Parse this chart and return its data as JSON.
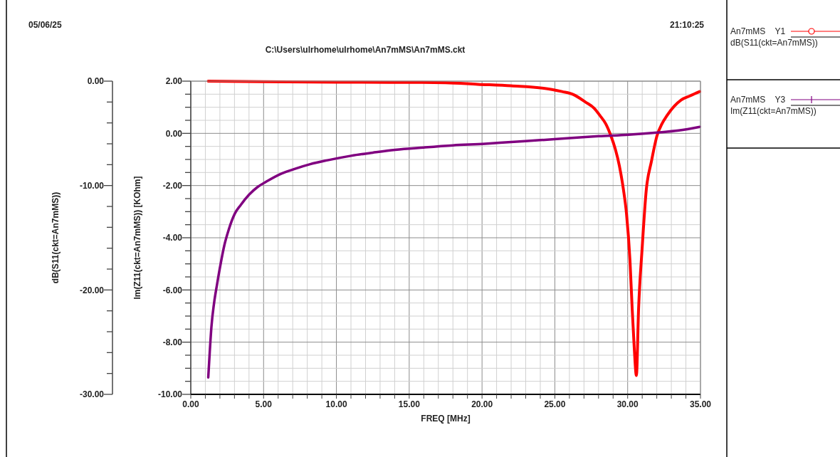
{
  "chart_data": {
    "type": "line",
    "subtitle": "C:\\Users\\ulrhome\\ulrhome\\An7mMS\\An7mMS.ckt",
    "annotations": [
      "05/06/25",
      "21:10:25"
    ],
    "xlabel": "FREQ [MHz]",
    "ylabel": "Im(Z11(ckt=An7mMS)) [KOhm]",
    "y2label": "dB(S11(ckt=An7mMS))",
    "xlim": [
      0,
      35
    ],
    "xticks": [
      {
        "value": 0,
        "label": "0.00"
      },
      {
        "value": 1,
        "label": null
      },
      {
        "value": 2,
        "label": null
      },
      {
        "value": 3,
        "label": null
      },
      {
        "value": 4,
        "label": null
      },
      {
        "value": 5,
        "label": "5.00"
      },
      {
        "value": 6,
        "label": null
      },
      {
        "value": 7,
        "label": null
      },
      {
        "value": 8,
        "label": null
      },
      {
        "value": 9,
        "label": null
      },
      {
        "value": 10,
        "label": "10.00"
      },
      {
        "value": 11,
        "label": null
      },
      {
        "value": 12,
        "label": null
      },
      {
        "value": 13,
        "label": null
      },
      {
        "value": 14,
        "label": null
      },
      {
        "value": 15,
        "label": "15.00"
      },
      {
        "value": 16,
        "label": null
      },
      {
        "value": 17,
        "label": null
      },
      {
        "value": 18,
        "label": null
      },
      {
        "value": 19,
        "label": null
      },
      {
        "value": 20,
        "label": "20.00"
      },
      {
        "value": 21,
        "label": null
      },
      {
        "value": 22,
        "label": null
      },
      {
        "value": 23,
        "label": null
      },
      {
        "value": 24,
        "label": null
      },
      {
        "value": 25,
        "label": "25.00"
      },
      {
        "value": 26,
        "label": null
      },
      {
        "value": 27,
        "label": null
      },
      {
        "value": 28,
        "label": null
      },
      {
        "value": 29,
        "label": null
      },
      {
        "value": 30,
        "label": "30.00"
      },
      {
        "value": 31,
        "label": null
      },
      {
        "value": 32,
        "label": null
      },
      {
        "value": 33,
        "label": null
      },
      {
        "value": 34,
        "label": null
      },
      {
        "value": 35,
        "label": "35.00"
      }
    ],
    "ylim": [
      -10,
      2
    ],
    "yticks": [
      {
        "value": -10,
        "label": "-10.00"
      },
      {
        "value": -9.5,
        "label": null
      },
      {
        "value": -9,
        "label": null
      },
      {
        "value": -8.5,
        "label": null
      },
      {
        "value": -8,
        "label": "-8.00"
      },
      {
        "value": -7.5,
        "label": null
      },
      {
        "value": -7,
        "label": null
      },
      {
        "value": -6.5,
        "label": null
      },
      {
        "value": -6,
        "label": "-6.00"
      },
      {
        "value": -5.5,
        "label": null
      },
      {
        "value": -5,
        "label": null
      },
      {
        "value": -4.5,
        "label": null
      },
      {
        "value": -4,
        "label": "-4.00"
      },
      {
        "value": -3.5,
        "label": null
      },
      {
        "value": -3,
        "label": null
      },
      {
        "value": -2.5,
        "label": null
      },
      {
        "value": -2,
        "label": "-2.00"
      },
      {
        "value": -1.5,
        "label": null
      },
      {
        "value": -1,
        "label": null
      },
      {
        "value": -0.5,
        "label": null
      },
      {
        "value": 0,
        "label": "0.00"
      },
      {
        "value": 0.5,
        "label": null
      },
      {
        "value": 1,
        "label": null
      },
      {
        "value": 1.5,
        "label": null
      },
      {
        "value": 2,
        "label": "2.00"
      }
    ],
    "y2lim": [
      -30,
      0
    ],
    "y2ticks": [
      {
        "value": -30,
        "label": "-30.00"
      },
      {
        "value": -20,
        "label": "-20.00"
      },
      {
        "value": -10,
        "label": "-10.00"
      },
      {
        "value": 0,
        "label": "0.00"
      }
    ],
    "grid": true,
    "legend": "right",
    "series": [
      {
        "name": "An7mMS    Y1\ndB(S11(ckt=An7mMS))",
        "color": "#ff0000",
        "axis": "y2",
        "x": [
          1.2,
          5,
          10,
          15,
          17.5,
          19.7,
          22,
          24.8,
          25.5,
          26.3,
          27.1,
          27.7,
          28.1,
          28.5,
          28.84,
          29.15,
          29.43,
          29.7,
          29.92,
          30.16,
          30.31,
          30.45,
          30.6,
          30.75,
          30.99,
          31.28,
          31.63,
          32.02,
          32.35,
          32.7,
          33.2,
          33.68,
          34.3,
          34.95
        ],
        "values": [
          0,
          -0.05,
          -0.1,
          -0.12,
          -0.15,
          -0.3,
          -0.45,
          -0.8,
          -1.0,
          -1.3,
          -2.0,
          -2.6,
          -3.3,
          -4.1,
          -5.2,
          -6.5,
          -8.1,
          -10.3,
          -12.7,
          -17.2,
          -21.8,
          -25.5,
          -28.2,
          -21.8,
          -16.1,
          -10.4,
          -7.7,
          -5.2,
          -4.1,
          -3.3,
          -2.4,
          -1.8,
          -1.4,
          -1.0
        ]
      },
      {
        "name": "An7mMS    Y3\nIm(Z11(ckt=An7mMS))",
        "color": "#800080",
        "axis": "y",
        "x": [
          1.2,
          1.3,
          1.42,
          1.6,
          1.8,
          2.05,
          2.3,
          2.6,
          3.03,
          3.42,
          4,
          4.6,
          5.28,
          6.2,
          7.2,
          8.2,
          9.39,
          11,
          12.5,
          14.03,
          16,
          18,
          20.2,
          22,
          24,
          26,
          28,
          30.06,
          32,
          33.5,
          34.95
        ],
        "values": [
          -9.35,
          -8.4,
          -7.4,
          -6.5,
          -5.8,
          -5.0,
          -4.3,
          -3.7,
          -3.07,
          -2.75,
          -2.35,
          -2.05,
          -1.82,
          -1.55,
          -1.35,
          -1.18,
          -1.03,
          -0.86,
          -0.74,
          -0.63,
          -0.54,
          -0.46,
          -0.4,
          -0.33,
          -0.26,
          -0.18,
          -0.11,
          -0.05,
          0.03,
          0.11,
          0.25
        ]
      }
    ]
  }
}
